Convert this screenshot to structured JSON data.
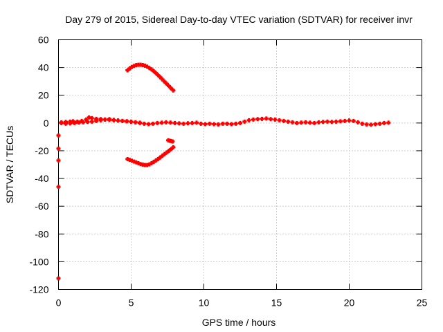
{
  "chart_data": {
    "type": "scatter",
    "title": "Day 279 of 2015, Sidereal Day-to-day VTEC variation (SDTVAR) for receiver invr",
    "xlabel": "GPS time / hours",
    "ylabel": "SDTVAR / TECUs",
    "xlim": [
      0,
      25
    ],
    "ylim": [
      -120,
      60
    ],
    "xticks": [
      0,
      5,
      10,
      15,
      20,
      25
    ],
    "yticks": [
      -120,
      -100,
      -80,
      -60,
      -40,
      -20,
      0,
      20,
      40,
      60
    ],
    "grid": true,
    "legend": "none",
    "marker": "plus",
    "color": "#ff0000",
    "series": [
      {
        "x": [
          0.2,
          0.5,
          0.8,
          1.0,
          1.3,
          1.6,
          1.9,
          2.1,
          2.3,
          2.6,
          2.9,
          3.2,
          3.5,
          3.8,
          4.1,
          4.4,
          4.7,
          5.0,
          5.3,
          5.6,
          5.9,
          6.2,
          6.5,
          6.8,
          7.1,
          7.4,
          7.7,
          8.0,
          8.3,
          8.6,
          8.9,
          9.2,
          9.5,
          9.8,
          10.1,
          10.4,
          10.7,
          11.0,
          11.3,
          11.6,
          11.9,
          12.2,
          12.5,
          12.8,
          13.1,
          13.4,
          13.7,
          14.0,
          14.3,
          14.6,
          14.9,
          15.2,
          15.5,
          15.8,
          16.1,
          16.4,
          16.7,
          17.0,
          17.3,
          17.6,
          17.9,
          18.2,
          18.5,
          18.8,
          19.1,
          19.4,
          19.7,
          20.0,
          20.3,
          20.6,
          20.9,
          21.2,
          21.5,
          21.8,
          22.1,
          22.4,
          22.7
        ],
        "y": [
          0.5,
          0.8,
          1.0,
          1.2,
          1.0,
          1.5,
          2.5,
          4.0,
          3.5,
          3.0,
          2.8,
          2.5,
          2.2,
          2.0,
          1.8,
          1.5,
          1.2,
          1.0,
          0.5,
          0.0,
          -0.5,
          -0.8,
          -0.5,
          0.0,
          0.2,
          0.5,
          0.3,
          0.0,
          -0.3,
          -0.5,
          -0.2,
          0.0,
          0.2,
          -0.5,
          -0.8,
          -0.5,
          -0.8,
          -1.0,
          -0.5,
          -0.5,
          -0.8,
          -0.5,
          0.0,
          1.0,
          2.0,
          2.5,
          2.8,
          3.0,
          3.2,
          2.8,
          2.5,
          2.0,
          1.5,
          1.0,
          0.5,
          0.0,
          0.3,
          0.5,
          0.2,
          0.0,
          0.5,
          0.8,
          1.0,
          0.8,
          1.0,
          1.2,
          1.5,
          1.8,
          1.5,
          0.5,
          -0.5,
          -1.0,
          -1.2,
          -0.8,
          -0.5,
          0.0,
          0.2
        ]
      },
      {
        "x": [
          0.2,
          0.5,
          0.8,
          1.1,
          1.4,
          1.7,
          2.0,
          2.3,
          2.6,
          2.9,
          3.2,
          3.5,
          3.8,
          4.1,
          4.4,
          4.7,
          5.0,
          5.3,
          5.6
        ],
        "y": [
          0.0,
          -0.5,
          -0.3,
          0.0,
          0.3,
          0.5,
          0.8,
          1.0,
          1.5,
          2.0,
          2.5,
          2.8,
          2.2,
          1.8,
          1.5,
          1.2,
          0.8,
          0.5,
          0.2
        ]
      },
      {
        "x": [
          4.75,
          4.9,
          5.05,
          5.2,
          5.35,
          5.5,
          5.65,
          5.8,
          5.95,
          6.1,
          6.25,
          6.4,
          6.55,
          6.7,
          6.85,
          7.0,
          7.15,
          7.3,
          7.45,
          7.6,
          7.75,
          7.9
        ],
        "y": [
          38.0,
          39.3,
          40.4,
          41.2,
          41.8,
          42.0,
          42.0,
          41.8,
          41.3,
          40.6,
          39.7,
          38.6,
          37.4,
          36.0,
          34.5,
          33.0,
          31.4,
          29.8,
          28.2,
          26.6,
          25.0,
          23.5
        ]
      },
      {
        "x": [
          4.75,
          4.9,
          5.05,
          5.2,
          5.35,
          5.5,
          5.65,
          5.8,
          5.95,
          6.1,
          6.25,
          6.4,
          6.55,
          6.7,
          6.85,
          7.0,
          7.15,
          7.3,
          7.45,
          7.6,
          7.75,
          7.9
        ],
        "y": [
          -26.0,
          -26.6,
          -27.2,
          -27.8,
          -28.4,
          -29.0,
          -29.6,
          -30.0,
          -30.3,
          -30.3,
          -29.8,
          -29.0,
          -28.0,
          -27.0,
          -26.0,
          -24.8,
          -23.6,
          -22.4,
          -21.2,
          -20.0,
          -18.8,
          -17.5
        ]
      },
      {
        "x": [
          7.55,
          7.65,
          7.75,
          7.85
        ],
        "y": [
          -12.5,
          -12.8,
          -13.0,
          -13.3
        ]
      },
      {
        "x": [
          0.0,
          0.0,
          0.0,
          0.0,
          0.0
        ],
        "y": [
          -9.0,
          -27.0,
          -46.0,
          -112.0,
          -18.5
        ]
      }
    ]
  }
}
